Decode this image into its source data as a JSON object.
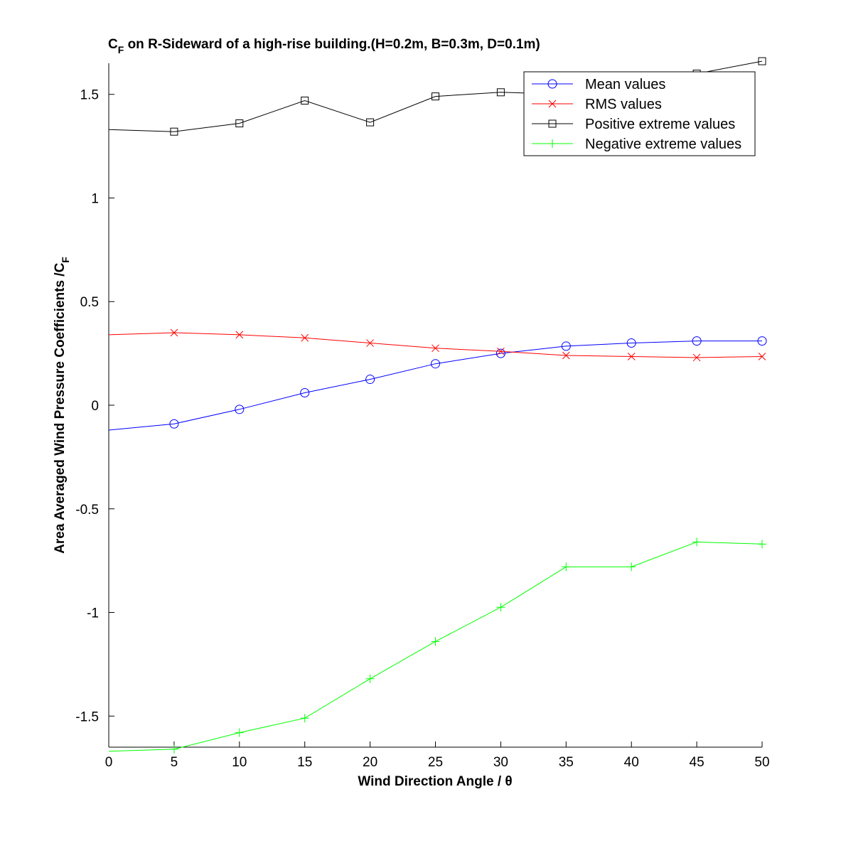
{
  "chart_data": {
    "type": "line",
    "title": {
      "main": "C",
      "sub": "F",
      "rest": " on R-Sideward of a high-rise building.(H=0.2m, B=0.3m, D=0.1m)"
    },
    "xlabel": "Wind Direction Angle  / θ",
    "ylabel": {
      "main": "Area Averaged Wind Pressure Coefficients /C",
      "sub": "F"
    },
    "xlim": [
      0,
      50
    ],
    "ylim": [
      -1.65,
      1.65
    ],
    "x_ticks": [
      0,
      5,
      10,
      15,
      20,
      25,
      30,
      35,
      40,
      45,
      50
    ],
    "y_ticks": [
      -1.5,
      -1,
      -0.5,
      0,
      0.5,
      1,
      1.5
    ],
    "x_tick_labels": [
      "0",
      "5",
      "10",
      "15",
      "20",
      "25",
      "30",
      "35",
      "40",
      "45",
      "50"
    ],
    "y_tick_labels": [
      "-1.5",
      "-1",
      "-0.5",
      "0",
      "0.5",
      "1",
      "1.5"
    ],
    "grid": false,
    "legend_position": "top-right",
    "x": [
      0,
      5,
      10,
      15,
      20,
      25,
      30,
      35,
      40,
      45,
      50
    ],
    "series": [
      {
        "name": "Mean values",
        "color": "#0000ff",
        "marker": "circle",
        "values": [
          -0.12,
          -0.09,
          -0.02,
          0.06,
          0.125,
          0.2,
          0.25,
          0.285,
          0.3,
          0.31,
          0.31
        ]
      },
      {
        "name": "RMS values",
        "color": "#ff0000",
        "marker": "x",
        "values": [
          0.34,
          0.35,
          0.34,
          0.325,
          0.3,
          0.275,
          0.26,
          0.24,
          0.235,
          0.23,
          0.235
        ]
      },
      {
        "name": "Positive extreme values",
        "color": "#000000",
        "marker": "square",
        "values": [
          1.33,
          1.32,
          1.36,
          1.47,
          1.365,
          1.49,
          1.51,
          1.5,
          1.54,
          1.6,
          1.66
        ]
      },
      {
        "name": "Negative extreme values",
        "color": "#00ff00",
        "marker": "plus",
        "values": [
          -1.67,
          -1.66,
          -1.58,
          -1.51,
          -1.32,
          -1.14,
          -0.975,
          -0.78,
          -0.78,
          -0.66,
          -0.67
        ]
      }
    ]
  }
}
